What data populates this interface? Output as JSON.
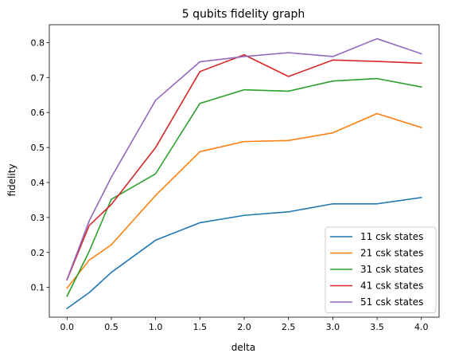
{
  "chart_data": {
    "type": "line",
    "title": "5 qubits fidelity graph",
    "xlabel": "delta",
    "ylabel": "fidelity",
    "xlim": [
      -0.2,
      4.2
    ],
    "ylim": [
      0.015,
      0.851
    ],
    "xticks": [
      "0.0",
      "0.5",
      "1.0",
      "1.5",
      "2.0",
      "2.5",
      "3.0",
      "3.5",
      "4.0"
    ],
    "yticks": [
      "0.1",
      "0.2",
      "0.3",
      "0.4",
      "0.5",
      "0.6",
      "0.7",
      "0.8"
    ],
    "grid": false,
    "legend_position": "bottom-right",
    "x": [
      0.0,
      0.25,
      0.5,
      1.0,
      1.5,
      2.0,
      2.5,
      3.0,
      3.5,
      4.0
    ],
    "series": [
      {
        "name": "11 csk states",
        "color": "#1f77b4",
        "values": [
          0.04,
          0.085,
          0.143,
          0.235,
          0.285,
          0.306,
          0.316,
          0.339,
          0.339,
          0.357
        ]
      },
      {
        "name": "21 csk states",
        "color": "#ff7f0e",
        "values": [
          0.098,
          0.178,
          0.222,
          0.363,
          0.488,
          0.517,
          0.52,
          0.542,
          0.597,
          0.557
        ]
      },
      {
        "name": "31 csk states",
        "color": "#2ca02c",
        "values": [
          0.075,
          0.203,
          0.352,
          0.425,
          0.626,
          0.665,
          0.661,
          0.69,
          0.697,
          0.673
        ]
      },
      {
        "name": "41 csk states",
        "color": "#d62728",
        "values": [
          0.122,
          0.277,
          0.337,
          0.5,
          0.717,
          0.765,
          0.703,
          0.75,
          0.746,
          0.741
        ]
      },
      {
        "name": "51 csk states",
        "color": "#9467bd",
        "values": [
          0.123,
          0.29,
          0.415,
          0.635,
          0.745,
          0.76,
          0.771,
          0.76,
          0.811,
          0.768
        ]
      }
    ]
  }
}
